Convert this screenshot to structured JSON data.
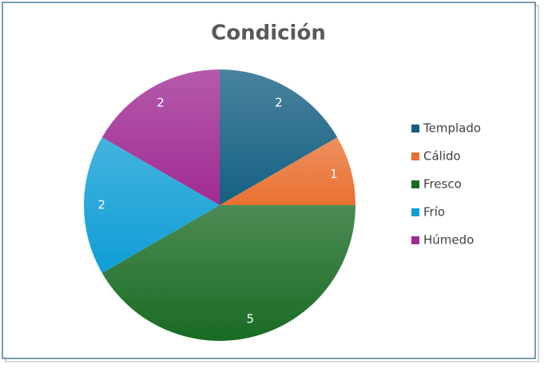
{
  "chart_data": {
    "type": "pie",
    "title": "Condición",
    "categories": [
      "Templado",
      "Cálido",
      "Fresco",
      "Frío",
      "Húmedo"
    ],
    "values": [
      2,
      1,
      5,
      2,
      2
    ],
    "colors": [
      "#156082",
      "#E97132",
      "#196B24",
      "#0F9ED5",
      "#A02B93"
    ],
    "legend": "right"
  }
}
